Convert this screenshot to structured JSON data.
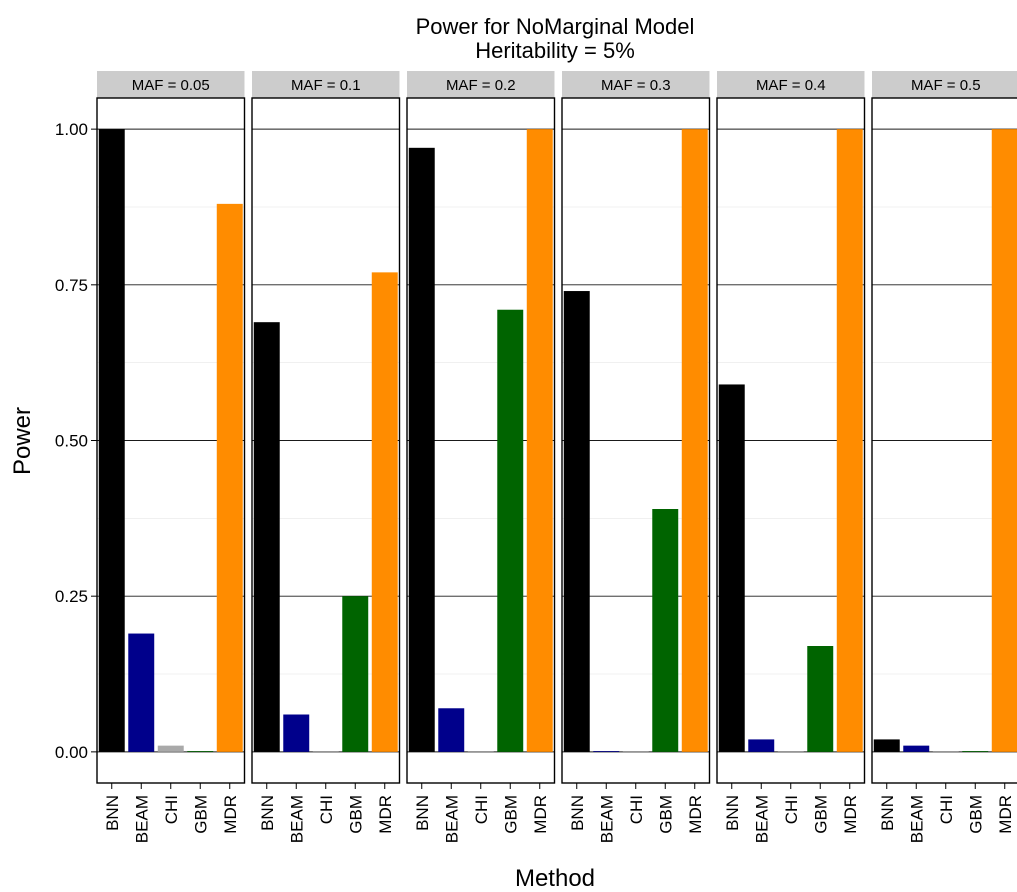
{
  "chart_data": {
    "type": "bar",
    "title": "Power for NoMarginal Model",
    "subtitle": "Heritability = 5%",
    "xlabel": "Method",
    "ylabel": "Power",
    "ylim": [
      -0.05,
      1.05
    ],
    "yticks": [
      0,
      0.25,
      0.5,
      0.75,
      1
    ],
    "ytick_labels": [
      "0.00",
      "0.25",
      "0.50",
      "0.75",
      "1.00"
    ],
    "categories": [
      "BNN",
      "BEAM",
      "CHI",
      "GBM",
      "MDR"
    ],
    "category_colors": [
      "#000000",
      "#00008b",
      "#a9a9a9",
      "#006400",
      "#ff8c00"
    ],
    "grid": true,
    "facets": [
      {
        "label": "MAF = 0.05",
        "values": [
          1.0,
          0.19,
          0.01,
          0.0,
          0.88
        ]
      },
      {
        "label": "MAF = 0.1",
        "values": [
          0.69,
          0.06,
          0.0,
          0.25,
          0.77
        ]
      },
      {
        "label": "MAF = 0.2",
        "values": [
          0.97,
          0.07,
          0.0,
          0.71,
          1.0
        ]
      },
      {
        "label": "MAF = 0.3",
        "values": [
          0.74,
          0.0,
          0.0,
          0.39,
          1.0
        ]
      },
      {
        "label": "MAF = 0.4",
        "values": [
          0.59,
          0.02,
          0.0,
          0.17,
          1.0
        ]
      },
      {
        "label": "MAF = 0.5",
        "values": [
          0.02,
          0.01,
          0.0,
          0.0,
          1.0
        ]
      }
    ]
  }
}
